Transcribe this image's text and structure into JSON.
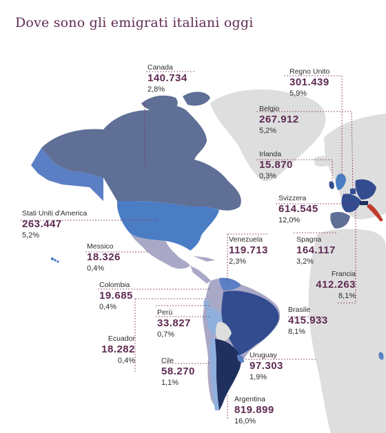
{
  "title": "Dove sono gli emigrati italiani oggi",
  "colors": {
    "title": "#5e2a52",
    "value": "#5e2a52",
    "land_gray": "#dedede",
    "very_dark": "#1f2f5e",
    "dark": "#324c8f",
    "medium": "#4a7dc4",
    "slate": "#5f6f96",
    "light": "#8fb0de",
    "pale": "#a9a8c6",
    "leader_line": "#7a2e5c"
  },
  "countries": [
    {
      "id": "canada",
      "name": "Canada",
      "value": "140.734",
      "percent": "2,8%"
    },
    {
      "id": "regno-unito",
      "name": "Regno Unito",
      "value": "301.439",
      "percent": "5,9%"
    },
    {
      "id": "belgio",
      "name": "Belgio",
      "value": "267.912",
      "percent": "5,2%"
    },
    {
      "id": "irlanda",
      "name": "Irlanda",
      "value": "15.870",
      "percent": "0,3%"
    },
    {
      "id": "stati-uniti",
      "name": "Stati Uniti d'America",
      "value": "263.447",
      "percent": "5,2%"
    },
    {
      "id": "svizzera",
      "name": "Svizzera",
      "value": "614.545",
      "percent": "12,0%"
    },
    {
      "id": "messico",
      "name": "Messico",
      "value": "18.326",
      "percent": "0,4%"
    },
    {
      "id": "venezuela",
      "name": "Venezuela",
      "value": "119.713",
      "percent": "2,3%"
    },
    {
      "id": "spagna",
      "name": "Spagna",
      "value": "164.117",
      "percent": "3,2%"
    },
    {
      "id": "francia",
      "name": "Francia",
      "value": "412.263",
      "percent": "8,1%"
    },
    {
      "id": "colombia",
      "name": "Colombia",
      "value": "19.685",
      "percent": "0,4%"
    },
    {
      "id": "peru",
      "name": "Perù",
      "value": "33.827",
      "percent": "0,7%"
    },
    {
      "id": "brasile",
      "name": "Brasile",
      "value": "415.933",
      "percent": "8,1%"
    },
    {
      "id": "ecuador",
      "name": "Ecuador",
      "value": "18.282",
      "percent": "0,4%"
    },
    {
      "id": "cile",
      "name": "Cile",
      "value": "58.270",
      "percent": "1,1%"
    },
    {
      "id": "uruguay",
      "name": "Uruguay",
      "value": "97.303",
      "percent": "1,9%"
    },
    {
      "id": "argentina",
      "name": "Argentina",
      "value": "819.899",
      "percent": "16,0%"
    }
  ]
}
